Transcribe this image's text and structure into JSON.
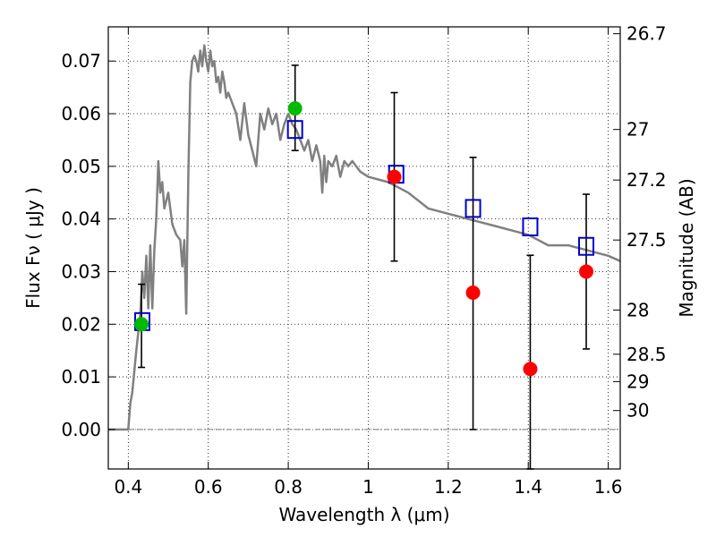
{
  "chart_data": {
    "type": "scatter",
    "title": "",
    "xlabel": "Wavelength  λ (μm)",
    "ylabel": "Flux  Fν  ( μJy )",
    "ylabel_right": "Magnitude (AB)",
    "xlim": [
      0.35,
      1.63
    ],
    "ylim": [
      -0.0075,
      0.0765
    ],
    "grid": true,
    "x_ticks": [
      0.4,
      0.6,
      0.8,
      1.0,
      1.2,
      1.4,
      1.6
    ],
    "x_tick_labels": [
      "0.4",
      "0.6",
      "0.8",
      "1",
      "1.2",
      "1.4",
      "1.6"
    ],
    "y_ticks": [
      0.0,
      0.01,
      0.02,
      0.03,
      0.04,
      0.05,
      0.06,
      0.07
    ],
    "y_tick_labels": [
      "0.00",
      "0.01",
      "0.02",
      "0.03",
      "0.04",
      "0.05",
      "0.06",
      "0.07"
    ],
    "right_ticks": [
      {
        "label": "26.7",
        "flux": 0.0752
      },
      {
        "label": "27",
        "flux": 0.057
      },
      {
        "label": "27.2",
        "flux": 0.0474
      },
      {
        "label": "27.5",
        "flux": 0.036
      },
      {
        "label": "28",
        "flux": 0.0227
      },
      {
        "label": "28.5",
        "flux": 0.0143
      },
      {
        "label": "29",
        "flux": 0.0091
      },
      {
        "label": "30",
        "flux": 0.0036
      }
    ],
    "series": [
      {
        "type": "line",
        "color": "#808080",
        "x": [
          0.35,
          0.4,
          0.405,
          0.41,
          0.42,
          0.43,
          0.435,
          0.44,
          0.445,
          0.45,
          0.455,
          0.46,
          0.465,
          0.47,
          0.475,
          0.48,
          0.485,
          0.49,
          0.5,
          0.51,
          0.52,
          0.53,
          0.535,
          0.54,
          0.545,
          0.55,
          0.555,
          0.56,
          0.565,
          0.57,
          0.575,
          0.58,
          0.585,
          0.59,
          0.595,
          0.6,
          0.605,
          0.61,
          0.615,
          0.62,
          0.625,
          0.63,
          0.635,
          0.64,
          0.645,
          0.65,
          0.66,
          0.67,
          0.68,
          0.69,
          0.7,
          0.71,
          0.72,
          0.73,
          0.74,
          0.75,
          0.76,
          0.77,
          0.78,
          0.79,
          0.8,
          0.81,
          0.82,
          0.83,
          0.84,
          0.85,
          0.86,
          0.87,
          0.88,
          0.885,
          0.89,
          0.895,
          0.9,
          0.91,
          0.92,
          0.93,
          0.94,
          0.95,
          0.96,
          0.98,
          1.0,
          1.05,
          1.1,
          1.15,
          1.2,
          1.25,
          1.3,
          1.35,
          1.4,
          1.45,
          1.5,
          1.55,
          1.6,
          1.63
        ],
        "y": [
          0.0,
          0.0,
          0.005,
          0.007,
          0.015,
          0.022,
          0.03,
          0.025,
          0.033,
          0.023,
          0.035,
          0.023,
          0.034,
          0.04,
          0.051,
          0.045,
          0.047,
          0.042,
          0.045,
          0.039,
          0.037,
          0.036,
          0.031,
          0.036,
          0.022,
          0.048,
          0.066,
          0.07,
          0.071,
          0.07,
          0.068,
          0.072,
          0.069,
          0.073,
          0.07,
          0.068,
          0.072,
          0.069,
          0.07,
          0.066,
          0.067,
          0.064,
          0.068,
          0.066,
          0.063,
          0.064,
          0.062,
          0.06,
          0.055,
          0.062,
          0.056,
          0.053,
          0.05,
          0.06,
          0.057,
          0.061,
          0.058,
          0.06,
          0.055,
          0.058,
          0.06,
          0.058,
          0.057,
          0.055,
          0.053,
          0.055,
          0.051,
          0.054,
          0.051,
          0.045,
          0.052,
          0.047,
          0.051,
          0.05,
          0.052,
          0.048,
          0.051,
          0.05,
          0.051,
          0.049,
          0.048,
          0.047,
          0.045,
          0.042,
          0.041,
          0.04,
          0.039,
          0.038,
          0.037,
          0.035,
          0.035,
          0.034,
          0.033,
          0.032
        ]
      },
      {
        "type": "scatter",
        "marker": "square",
        "color": "#0000cc",
        "x": [
          0.435,
          0.817,
          1.07,
          1.262,
          1.405,
          1.545
        ],
        "y": [
          0.0205,
          0.057,
          0.0485,
          0.042,
          0.0385,
          0.0348
        ]
      },
      {
        "type": "scatter",
        "marker": "circle",
        "color": "#ff0000",
        "x": [
          1.065,
          1.262,
          1.405,
          1.545
        ],
        "y": [
          0.048,
          0.026,
          0.0115,
          0.03
        ],
        "yerr_low": [
          0.032,
          0.0,
          -0.0075,
          0.0153
        ],
        "yerr_high": [
          0.064,
          0.0517,
          0.0331,
          0.0447
        ]
      },
      {
        "type": "scatter",
        "marker": "circle",
        "color": "#00bb00",
        "x": [
          0.433,
          0.817
        ],
        "y": [
          0.02,
          0.061
        ],
        "yerr_low": [
          0.0118,
          0.053
        ],
        "yerr_high": [
          0.0276,
          0.0692
        ]
      }
    ]
  }
}
